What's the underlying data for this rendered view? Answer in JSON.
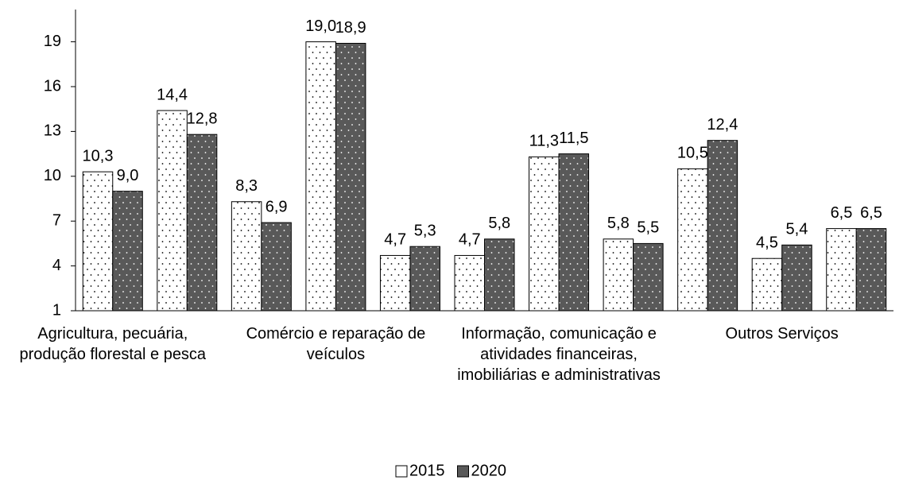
{
  "chart_data": {
    "type": "bar",
    "categories": [
      "Agricultura, pecuária, produção florestal e pesca",
      null,
      null,
      "Comércio e reparação de veículos",
      null,
      null,
      "Informação, comunicação e atividades financeiras, imobiliárias e administrativas",
      null,
      null,
      "Outros Serviços",
      null
    ],
    "series": [
      {
        "name": "2015",
        "color": "#ffffff",
        "values": [
          10.3,
          14.4,
          8.3,
          19.0,
          4.7,
          4.7,
          11.3,
          5.8,
          10.5,
          4.5,
          6.5
        ],
        "value_labels": [
          "10,3",
          "14,4",
          "8,3",
          "19,0",
          "4,7",
          "4,7",
          "11,3",
          "5,8",
          "10,5",
          "4,5",
          "6,5"
        ]
      },
      {
        "name": "2020",
        "color": "#595959",
        "values": [
          9.0,
          12.8,
          6.9,
          18.9,
          5.3,
          5.8,
          11.5,
          5.5,
          12.4,
          5.4,
          6.5
        ],
        "value_labels": [
          "9,0",
          "12,8",
          "6,9",
          "18,9",
          "5,3",
          "5,8",
          "11,5",
          "5,5",
          "12,4",
          "5,4",
          "6,5"
        ]
      }
    ],
    "ylim": [
      1,
      21
    ],
    "yticks": [
      1,
      4,
      7,
      10,
      13,
      16,
      19
    ],
    "grid": false,
    "legend": "bottom"
  }
}
